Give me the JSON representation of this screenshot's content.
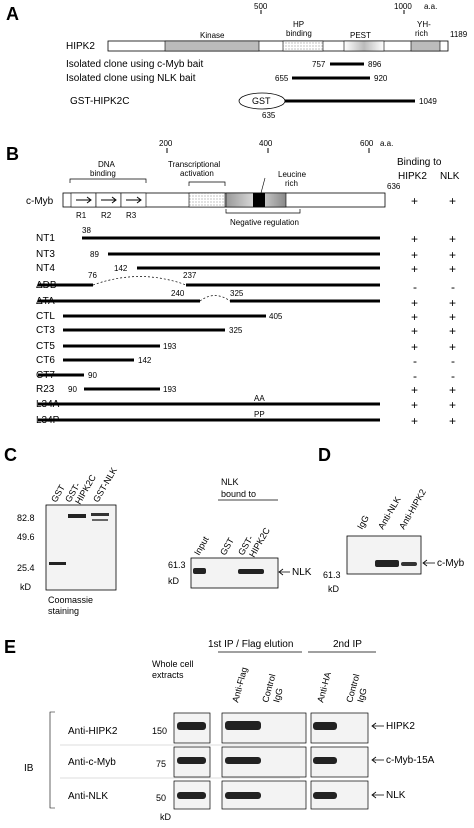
{
  "panels": {
    "A": "A",
    "B": "B",
    "C": "C",
    "D": "D",
    "E": "E"
  },
  "panelA": {
    "scale_ticks": [
      "500",
      "1000"
    ],
    "aa_label": "a.a.",
    "protein_name": "HIPK2",
    "protein_end": "1189",
    "domains": {
      "kinase": "Kinase",
      "hp1": "HP",
      "hp2": "binding",
      "pest": "PEST",
      "yh1": "YH-",
      "yh2": "rich"
    },
    "clones": [
      {
        "label": "Isolated clone using c-Myb bait",
        "start": "757",
        "end": "896"
      },
      {
        "label": "Isolated clone using NLK bait",
        "start": "655",
        "end": "920"
      }
    ],
    "gst_label": "GST-HIPK2C",
    "gst_tag": "GST",
    "gst_start": "635",
    "gst_end": "1049"
  },
  "panelB": {
    "scale_ticks": [
      "200",
      "400",
      "600"
    ],
    "aa_label": "a.a.",
    "binding_header": [
      "Binding to",
      "HIPK2",
      "NLK"
    ],
    "protein_name": "c-Myb",
    "protein_end": "636",
    "dna_binding": [
      "DNA",
      "binding"
    ],
    "repeats": [
      "R1",
      "R2",
      "R3"
    ],
    "trans_act": [
      "Transcriptional",
      "activation"
    ],
    "leucine": [
      "Leucine",
      "rich"
    ],
    "neg_reg": "Negative regulation",
    "wt_binding": [
      "+",
      "+"
    ],
    "mutants": [
      {
        "name": "NT1",
        "labels": [
          "38"
        ],
        "hipk2": "+",
        "nlk": "+"
      },
      {
        "name": "NT3",
        "labels": [
          "89"
        ],
        "hipk2": "+",
        "nlk": "+"
      },
      {
        "name": "NT4",
        "labels": [
          "142"
        ],
        "hipk2": "+",
        "nlk": "+"
      },
      {
        "name": "ΔDB",
        "labels": [
          "76",
          "237"
        ],
        "hipk2": "-",
        "nlk": "-"
      },
      {
        "name": "ΔTA",
        "labels": [
          "240",
          "325"
        ],
        "hipk2": "+",
        "nlk": "+"
      },
      {
        "name": "CTL",
        "labels": [
          "405"
        ],
        "hipk2": "+",
        "nlk": "+"
      },
      {
        "name": "CT3",
        "labels": [
          "325"
        ],
        "hipk2": "+",
        "nlk": "+"
      },
      {
        "name": "CT5",
        "labels": [
          "193"
        ],
        "hipk2": "+",
        "nlk": "+"
      },
      {
        "name": "CT6",
        "labels": [
          "142"
        ],
        "hipk2": "-",
        "nlk": "-"
      },
      {
        "name": "CT7",
        "labels": [
          "90"
        ],
        "hipk2": "-",
        "nlk": "-"
      },
      {
        "name": "R23",
        "labels": [
          "90",
          "193"
        ],
        "hipk2": "+",
        "nlk": "+"
      },
      {
        "name": "L34A",
        "labels": [
          "AA"
        ],
        "hipk2": "+",
        "nlk": "+"
      },
      {
        "name": "L34P",
        "labels": [
          "PP"
        ],
        "hipk2": "+",
        "nlk": "+"
      }
    ]
  },
  "panelC": {
    "lanes": [
      "GST",
      "GST-",
      "HIPK2C",
      "GST-NLK"
    ],
    "markers": [
      "82.8",
      "49.6",
      "25.4"
    ],
    "kd": "kD",
    "caption": [
      "Coomassie",
      "staining"
    ],
    "bound_to": [
      "NLK",
      "bound to"
    ],
    "pull_lanes": [
      "Input",
      "GST",
      "GST-",
      "HIPK2C"
    ],
    "pull_marker": "61.3",
    "pull_kd": "kD",
    "band_label": "NLK"
  },
  "panelD": {
    "lanes": [
      "IgG",
      "Anti-NLK",
      "Anti-HIPK2"
    ],
    "marker": "61.3",
    "kd": "kD",
    "band_label": "c-Myb"
  },
  "panelE": {
    "ip1_header": "1st IP / Flag elution",
    "ip2_header": "2nd IP",
    "wce": [
      "Whole cell",
      "extracts"
    ],
    "lanes": [
      {
        "lines": [
          "Anti-Flag"
        ]
      },
      {
        "lines": [
          "Control",
          "IgG"
        ]
      },
      {
        "lines": [
          "Anti-HA"
        ]
      },
      {
        "lines": [
          "Control",
          "IgG"
        ]
      }
    ],
    "ib_label": "IB",
    "rows": [
      {
        "antibody": "Anti-HIPK2",
        "marker": "150",
        "target": "HIPK2"
      },
      {
        "antibody": "Anti-c-Myb",
        "marker": "75",
        "target": "c-Myb-15A"
      },
      {
        "antibody": "Anti-NLK",
        "marker": "50",
        "target": "NLK"
      }
    ],
    "kd": "kD"
  }
}
